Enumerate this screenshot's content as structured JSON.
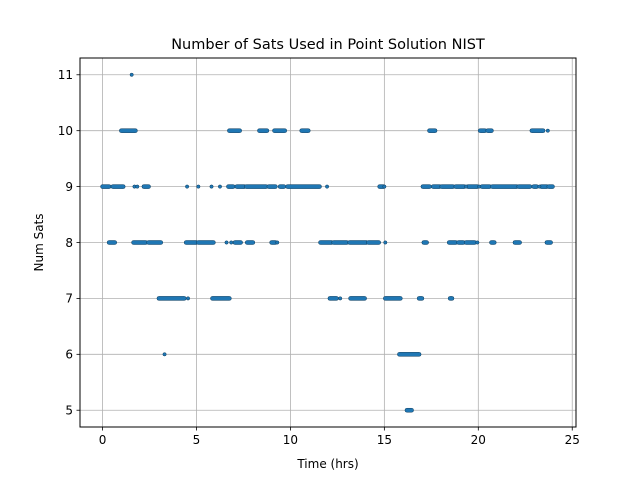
{
  "chart_data": {
    "type": "scatter",
    "title": "Number of Sats Used in Point Solution NIST",
    "xlabel": "Time (hrs)",
    "ylabel": "Num Sats",
    "xlim": [
      -1.2,
      25.2
    ],
    "ylim": [
      4.7,
      11.3
    ],
    "xticks": [
      0,
      5,
      10,
      15,
      20,
      25
    ],
    "xtick_labels": [
      "0",
      "5",
      "10",
      "15",
      "20",
      "25"
    ],
    "yticks": [
      5,
      6,
      7,
      8,
      9,
      10,
      11
    ],
    "ytick_labels": [
      "5",
      "6",
      "7",
      "8",
      "9",
      "10",
      "11"
    ],
    "grid": true,
    "marker_color": "#1f77b4",
    "series": [
      {
        "y": 11,
        "x": [
          1.55
        ],
        "segments": []
      },
      {
        "y": 10,
        "segments": [
          [
            1.0,
            1.75
          ],
          [
            6.75,
            7.3
          ],
          [
            8.35,
            8.75
          ],
          [
            9.15,
            9.7
          ],
          [
            10.6,
            10.95
          ],
          [
            17.4,
            17.7
          ],
          [
            20.1,
            20.35
          ],
          [
            20.5,
            20.7
          ],
          [
            22.85,
            23.45
          ]
        ],
        "x": [
          23.7
        ]
      },
      {
        "y": 9,
        "segments": [
          [
            0.0,
            0.35
          ],
          [
            0.55,
            1.1
          ],
          [
            2.2,
            2.45
          ],
          [
            6.7,
            6.95
          ],
          [
            7.15,
            7.55
          ],
          [
            7.65,
            8.7
          ],
          [
            8.85,
            9.2
          ],
          [
            9.45,
            9.65
          ],
          [
            9.85,
            11.55
          ],
          [
            14.75,
            14.95
          ],
          [
            17.05,
            17.4
          ],
          [
            17.6,
            17.95
          ],
          [
            18.05,
            18.65
          ],
          [
            18.8,
            19.25
          ],
          [
            19.45,
            19.95
          ],
          [
            20.2,
            20.6
          ],
          [
            20.75,
            22.05
          ],
          [
            22.15,
            22.75
          ],
          [
            22.95,
            23.1
          ],
          [
            23.35,
            23.65
          ],
          [
            23.75,
            23.95
          ]
        ],
        "x": [
          1.7,
          1.85,
          4.5,
          5.1,
          5.8,
          6.25,
          11.95,
          15.0,
          19.35,
          20.05,
          23.25
        ]
      },
      {
        "y": 8,
        "segments": [
          [
            0.35,
            0.65
          ],
          [
            1.65,
            2.3
          ],
          [
            2.45,
            3.1
          ],
          [
            4.45,
            5.0
          ],
          [
            5.1,
            5.9
          ],
          [
            7.05,
            7.35
          ],
          [
            7.7,
            8.0
          ],
          [
            9.0,
            9.2
          ],
          [
            11.6,
            12.2
          ],
          [
            12.3,
            13.0
          ],
          [
            13.15,
            14.05
          ],
          [
            14.15,
            14.7
          ],
          [
            17.1,
            17.25
          ],
          [
            18.45,
            18.8
          ],
          [
            18.95,
            19.2
          ],
          [
            19.35,
            19.8
          ],
          [
            20.7,
            20.85
          ],
          [
            21.95,
            22.2
          ],
          [
            23.65,
            23.85
          ]
        ],
        "x": [
          6.6,
          6.85,
          9.3,
          15.05,
          19.95
        ]
      },
      {
        "y": 7,
        "segments": [
          [
            3.0,
            4.35
          ],
          [
            5.85,
            6.75
          ],
          [
            12.1,
            12.45
          ],
          [
            13.2,
            13.95
          ],
          [
            15.05,
            15.85
          ],
          [
            16.85,
            17.0
          ],
          [
            18.5,
            18.6
          ]
        ],
        "x": [
          4.55,
          12.65
        ]
      },
      {
        "y": 6,
        "segments": [
          [
            15.8,
            16.85
          ]
        ],
        "x": [
          3.3
        ]
      },
      {
        "y": 5,
        "segments": [
          [
            16.2,
            16.45
          ]
        ],
        "x": []
      }
    ]
  }
}
